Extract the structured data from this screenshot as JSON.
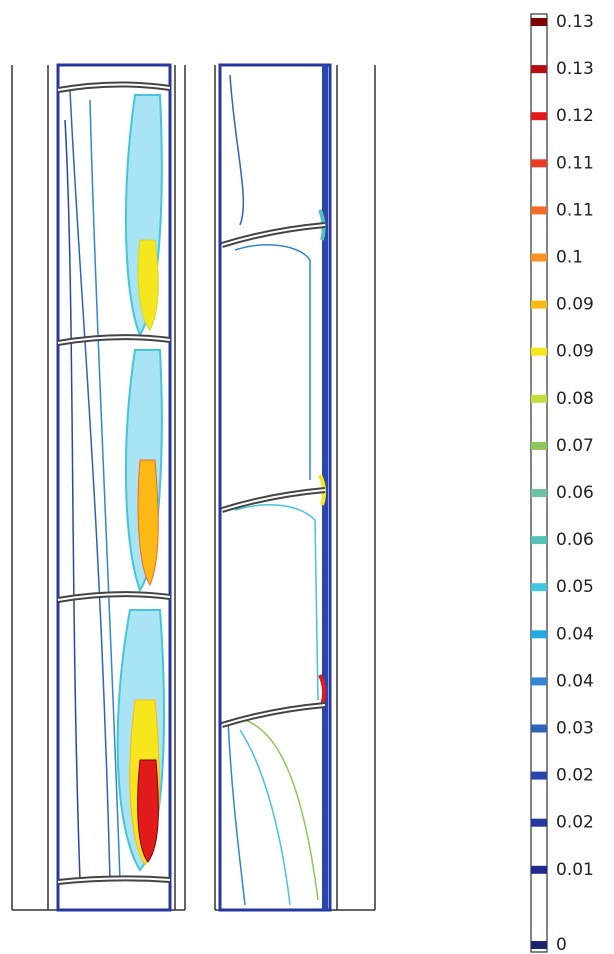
{
  "colorbar": {
    "levels": [
      {
        "label": "0.13",
        "color": "#7f0000"
      },
      {
        "label": "0.13",
        "color": "#b50d12"
      },
      {
        "label": "0.12",
        "color": "#e31a1c"
      },
      {
        "label": "0.11",
        "color": "#ee3a22"
      },
      {
        "label": "0.11",
        "color": "#f26a2a"
      },
      {
        "label": "0.1",
        "color": "#f7931e"
      },
      {
        "label": "0.09",
        "color": "#fcb814"
      },
      {
        "label": "0.09",
        "color": "#f5e61e"
      },
      {
        "label": "0.08",
        "color": "#c5dc3c"
      },
      {
        "label": "0.07",
        "color": "#8cc85a"
      },
      {
        "label": "0.06",
        "color": "#6cc4a0"
      },
      {
        "label": "0.06",
        "color": "#53c1b5"
      },
      {
        "label": "0.05",
        "color": "#42c5dd"
      },
      {
        "label": "0.04",
        "color": "#23a9e1"
      },
      {
        "label": "0.04",
        "color": "#2f86d2"
      },
      {
        "label": "0.03",
        "color": "#2e62bb"
      },
      {
        "label": "0.02",
        "color": "#2a45ad"
      },
      {
        "label": "0.02",
        "color": "#2637a0"
      },
      {
        "label": "0.01",
        "color": "#1f2c8f"
      },
      {
        "label": "0",
        "color": "#1a2470"
      }
    ]
  }
}
